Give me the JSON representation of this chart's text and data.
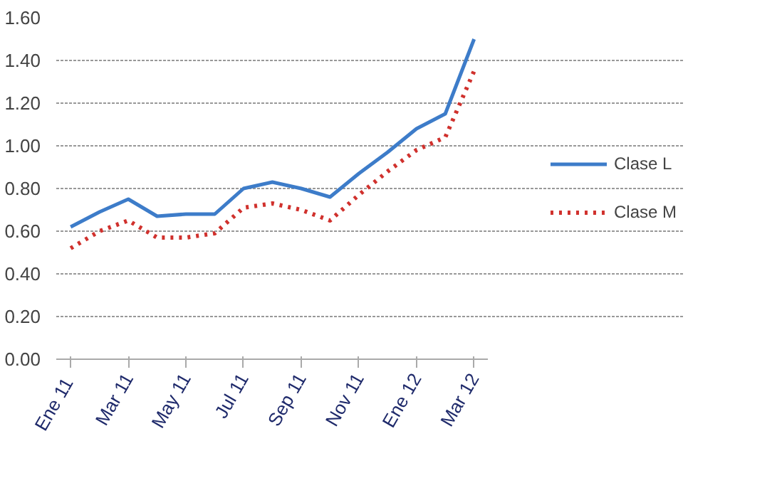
{
  "chart_data": {
    "type": "line",
    "categories": [
      "Ene  11",
      null,
      "Mar 11",
      null,
      "May 11",
      null,
      "Jul 11",
      null,
      "Sep 11",
      null,
      "Nov 11",
      null,
      "Ene 12",
      null,
      "Mar 12"
    ],
    "series": [
      {
        "name": "Clase L",
        "color": "#3d7cc9",
        "line_style": "solid",
        "values": [
          0.62,
          0.69,
          0.75,
          0.67,
          0.68,
          0.68,
          0.8,
          0.83,
          0.8,
          0.76,
          0.87,
          0.97,
          1.08,
          1.15,
          1.5
        ]
      },
      {
        "name": "Clase M",
        "color": "#d0312d",
        "line_style": "dotted",
        "values": [
          0.52,
          0.6,
          0.65,
          0.57,
          0.57,
          0.59,
          0.71,
          0.73,
          0.7,
          0.65,
          0.77,
          0.88,
          0.98,
          1.04,
          1.35
        ]
      }
    ],
    "ylim": [
      0,
      1.6
    ],
    "yticks": [
      {
        "value": 0,
        "label": "0.00"
      },
      {
        "value": 0.2,
        "label": "0.20"
      },
      {
        "value": 0.4,
        "label": "0.40"
      },
      {
        "value": 0.6,
        "label": "0.60"
      },
      {
        "value": 0.8,
        "label": "0.80"
      },
      {
        "value": 1.0,
        "label": "1.00"
      },
      {
        "value": 1.2,
        "label": "1.20"
      },
      {
        "value": 1.4,
        "label": "1.40"
      },
      {
        "value": 1.6,
        "label": "1.60"
      }
    ],
    "grid": "y",
    "legend": "right",
    "marker": "none"
  }
}
